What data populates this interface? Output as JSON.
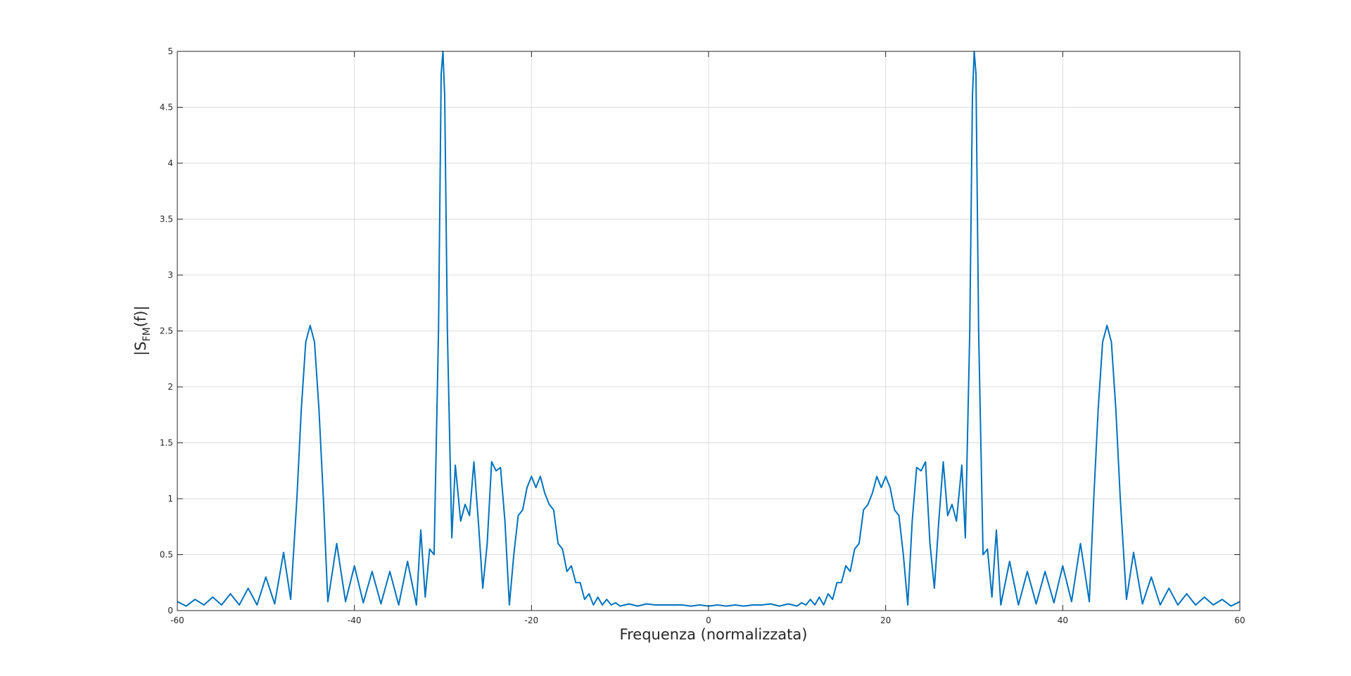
{
  "chart_data": {
    "type": "line",
    "title": "",
    "xlabel": "Frequenza (normalizzata)",
    "ylabel": "|S",
    "ylabel_sub": "FM",
    "ylabel_tail": "(f)|",
    "xlim": [
      -60,
      60
    ],
    "ylim": [
      0,
      5
    ],
    "grid": true,
    "legend": "none",
    "colors": {
      "line": "#0072BD",
      "axis": "#262626",
      "grid": "#dcdcdc"
    },
    "x_ticks": [
      -60,
      -40,
      -20,
      0,
      20,
      40,
      60
    ],
    "y_ticks": [
      0,
      0.5,
      1,
      1.5,
      2,
      2.5,
      3,
      3.5,
      4,
      4.5,
      5
    ],
    "x_tick_labels": [
      "-60",
      "-40",
      "-20",
      "0",
      "20",
      "40",
      "60"
    ],
    "y_tick_labels": [
      "0",
      "0.5",
      "1",
      "1.5",
      "2",
      "2.5",
      "3",
      "3.5",
      "4",
      "4.5",
      "5"
    ],
    "series": [
      {
        "x": [
          -60,
          -59,
          -58,
          -57,
          -56,
          -55,
          -54,
          -53,
          -52,
          -51,
          -50,
          -49,
          -48,
          -47.2,
          -46.5,
          -46,
          -45.5,
          -45,
          -44.5,
          -44,
          -43.5,
          -43,
          -42,
          -41,
          -40,
          -39,
          -38,
          -37,
          -36,
          -35,
          -34,
          -33,
          -32.5,
          -32,
          -31.5,
          -31,
          -30.5,
          -30.2,
          -30,
          -29.8,
          -29.5,
          -29,
          -28.6,
          -28,
          -27.5,
          -27,
          -26.5,
          -26,
          -25.5,
          -25,
          -24.5,
          -24,
          -23.5,
          -23,
          -22.5,
          -22,
          -21.5,
          -21,
          -20.5,
          -20,
          -19.5,
          -19,
          -18.5,
          -18,
          -17.5,
          -17,
          -16.5,
          -16,
          -15.5,
          -15,
          -14.5,
          -14,
          -13.5,
          -13,
          -12.5,
          -12,
          -11.5,
          -11,
          -10.5,
          -10,
          -9,
          -8,
          -7,
          -6,
          -5,
          -4,
          -3,
          -2,
          -1,
          0,
          1,
          2,
          3,
          4,
          5,
          6,
          7,
          8,
          9,
          10,
          10.5,
          11,
          11.5,
          12,
          12.5,
          13,
          13.5,
          14,
          14.5,
          15,
          15.5,
          16,
          16.5,
          17,
          17.5,
          18,
          18.5,
          19,
          19.5,
          20,
          20.5,
          21,
          21.5,
          22,
          22.5,
          23,
          23.5,
          24,
          24.5,
          25,
          25.5,
          26,
          26.5,
          27,
          27.5,
          28,
          28.6,
          29,
          29.5,
          29.8,
          30,
          30.2,
          30.5,
          31,
          31.5,
          32,
          32.5,
          33,
          34,
          35,
          36,
          37,
          38,
          39,
          40,
          41,
          42,
          43,
          43.5,
          44,
          44.5,
          45,
          45.5,
          46,
          46.5,
          47.2,
          48,
          49,
          50,
          51,
          52,
          53,
          54,
          55,
          56,
          57,
          58,
          59,
          60
        ],
        "y": [
          0.08,
          0.04,
          0.1,
          0.05,
          0.12,
          0.05,
          0.15,
          0.05,
          0.2,
          0.05,
          0.3,
          0.06,
          0.52,
          0.1,
          1.0,
          1.8,
          2.4,
          2.55,
          2.4,
          1.8,
          1.0,
          0.08,
          0.6,
          0.08,
          0.4,
          0.07,
          0.35,
          0.06,
          0.35,
          0.05,
          0.44,
          0.05,
          0.72,
          0.12,
          0.55,
          0.5,
          2.5,
          4.8,
          5.0,
          4.6,
          2.5,
          0.65,
          1.3,
          0.8,
          0.95,
          0.85,
          1.33,
          0.8,
          0.2,
          0.6,
          1.33,
          1.25,
          1.28,
          0.8,
          0.05,
          0.5,
          0.85,
          0.9,
          1.1,
          1.2,
          1.1,
          1.2,
          1.05,
          0.95,
          0.9,
          0.6,
          0.55,
          0.35,
          0.4,
          0.25,
          0.25,
          0.1,
          0.15,
          0.05,
          0.12,
          0.05,
          0.1,
          0.05,
          0.07,
          0.04,
          0.06,
          0.04,
          0.06,
          0.05,
          0.05,
          0.05,
          0.05,
          0.04,
          0.05,
          0.04,
          0.05,
          0.04,
          0.05,
          0.04,
          0.05,
          0.05,
          0.06,
          0.04,
          0.06,
          0.04,
          0.07,
          0.05,
          0.1,
          0.05,
          0.12,
          0.05,
          0.15,
          0.1,
          0.25,
          0.25,
          0.4,
          0.35,
          0.55,
          0.6,
          0.9,
          0.95,
          1.05,
          1.2,
          1.1,
          1.2,
          1.1,
          0.9,
          0.85,
          0.5,
          0.05,
          0.8,
          1.28,
          1.25,
          1.33,
          0.6,
          0.2,
          0.8,
          1.33,
          0.85,
          0.95,
          0.8,
          1.3,
          0.65,
          2.5,
          4.6,
          5.0,
          4.8,
          2.5,
          0.5,
          0.55,
          0.12,
          0.72,
          0.05,
          0.44,
          0.05,
          0.35,
          0.06,
          0.35,
          0.07,
          0.4,
          0.08,
          0.6,
          0.08,
          1.0,
          1.8,
          2.4,
          2.55,
          2.4,
          1.8,
          1.0,
          0.1,
          0.52,
          0.06,
          0.3,
          0.05,
          0.2,
          0.05,
          0.15,
          0.05,
          0.12,
          0.05,
          0.1,
          0.04,
          0.08
        ]
      }
    ]
  }
}
